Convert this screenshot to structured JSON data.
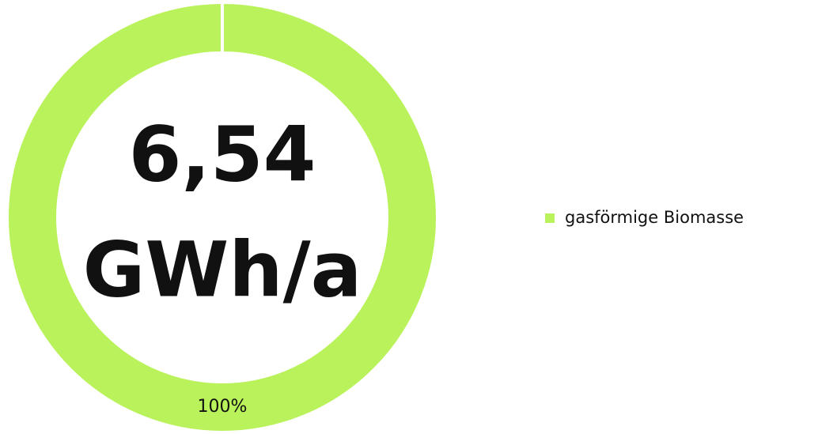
{
  "chart_data": {
    "type": "donut",
    "center_label_lines": [
      "6,54",
      "GWh/a"
    ],
    "categories": [
      "gasförmige Biomasse"
    ],
    "values": [
      100
    ],
    "value_labels": [
      "100%"
    ],
    "colors": [
      "#b9f25a"
    ],
    "legend": "right"
  }
}
